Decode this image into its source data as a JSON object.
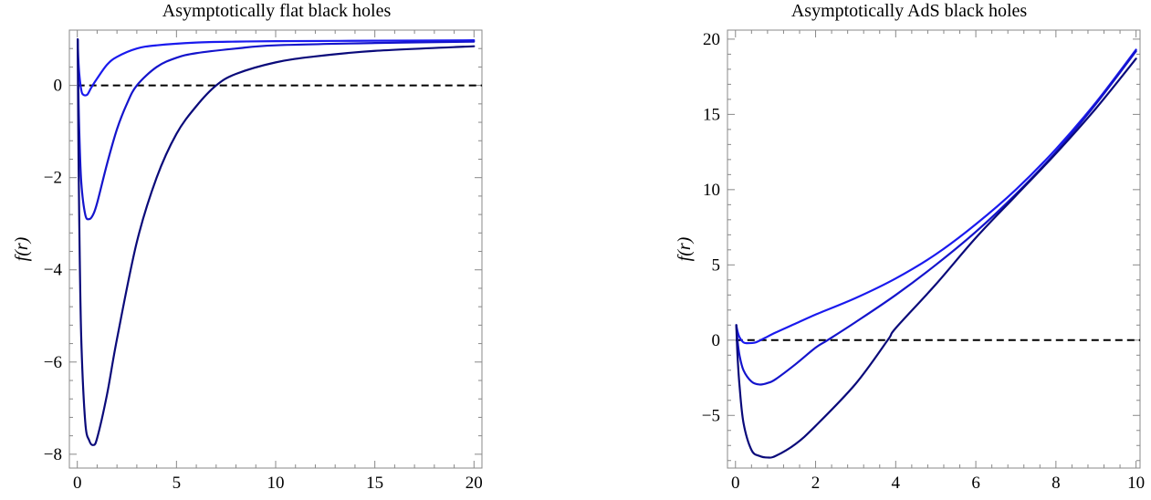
{
  "chart_data": [
    {
      "type": "line",
      "title": "Asymptotically flat black holes",
      "xlabel": "r",
      "ylabel": "f(r)",
      "xlim": [
        -0.4,
        20.4
      ],
      "ylim": [
        -8.3,
        1.2
      ],
      "xticks": [
        0,
        5,
        10,
        15,
        20
      ],
      "yticks": [
        -8,
        -6,
        -4,
        -2,
        0
      ],
      "xtick_labels": [
        "0",
        "5",
        "10",
        "15",
        "20"
      ],
      "ytick_labels": [
        "−8",
        "−6",
        "−4",
        "−2",
        "0"
      ],
      "reference_line": {
        "y": 0,
        "style": "dashed",
        "color": "#000000"
      },
      "series": [
        {
          "color": "#1a1aee",
          "x": [
            0.02,
            0.05,
            0.1,
            0.2,
            0.3,
            0.5,
            0.7,
            1.0,
            1.5,
            2.0,
            3.0,
            4.0,
            6.0,
            8.0,
            10.0,
            15.0,
            20.0
          ],
          "y": [
            1.0,
            0.6,
            0.25,
            -0.1,
            -0.2,
            -0.2,
            -0.05,
            0.15,
            0.45,
            0.62,
            0.8,
            0.87,
            0.93,
            0.95,
            0.96,
            0.97,
            0.98
          ]
        },
        {
          "color": "#1414cc",
          "x": [
            0.02,
            0.05,
            0.1,
            0.2,
            0.4,
            0.6,
            0.8,
            1.0,
            1.5,
            2.0,
            2.5,
            3.0,
            4.0,
            5.0,
            6.0,
            8.0,
            10.0,
            15.0,
            20.0
          ],
          "y": [
            1.0,
            0.0,
            -1.0,
            -2.1,
            -2.8,
            -2.9,
            -2.8,
            -2.55,
            -1.7,
            -0.95,
            -0.4,
            0.0,
            0.4,
            0.6,
            0.7,
            0.8,
            0.87,
            0.92,
            0.95
          ]
        },
        {
          "color": "#0a0a7a",
          "x": [
            0.02,
            0.05,
            0.1,
            0.2,
            0.4,
            0.6,
            0.8,
            1.0,
            1.5,
            2.0,
            3.0,
            4.0,
            5.0,
            6.0,
            7.0,
            8.0,
            10.0,
            12.0,
            15.0,
            20.0
          ],
          "y": [
            1.0,
            -1.0,
            -3.0,
            -5.5,
            -7.3,
            -7.7,
            -7.8,
            -7.65,
            -6.7,
            -5.5,
            -3.4,
            -2.0,
            -1.05,
            -0.45,
            0.0,
            0.25,
            0.5,
            0.63,
            0.75,
            0.85
          ]
        }
      ]
    },
    {
      "type": "line",
      "title": "Asymptotically AdS black holes",
      "xlabel": "r",
      "ylabel": "f(r)",
      "xlim": [
        -0.2,
        10.1
      ],
      "ylim": [
        -8.5,
        20.6
      ],
      "xticks": [
        0,
        2,
        4,
        6,
        8,
        10
      ],
      "yticks": [
        -5,
        0,
        5,
        10,
        15,
        20
      ],
      "xtick_labels": [
        "0",
        "2",
        "4",
        "6",
        "8",
        "10"
      ],
      "ytick_labels": [
        "−5",
        "0",
        "5",
        "10",
        "15",
        "20"
      ],
      "reference_line": {
        "y": 0,
        "style": "dashed",
        "color": "#000000"
      },
      "series": [
        {
          "color": "#1a1aee",
          "x": [
            0.02,
            0.05,
            0.1,
            0.2,
            0.3,
            0.5,
            0.7,
            1.0,
            1.5,
            2.0,
            3.0,
            4.0,
            5.0,
            6.0,
            7.0,
            8.0,
            9.0,
            10.0
          ],
          "y": [
            1.0,
            0.6,
            0.2,
            -0.15,
            -0.2,
            -0.15,
            0.1,
            0.5,
            1.1,
            1.7,
            2.8,
            4.1,
            5.7,
            7.7,
            10.0,
            12.7,
            15.8,
            19.3
          ]
        },
        {
          "color": "#1414cc",
          "x": [
            0.02,
            0.05,
            0.1,
            0.2,
            0.4,
            0.6,
            0.8,
            1.0,
            1.5,
            2.0,
            2.3,
            3.0,
            4.0,
            5.0,
            6.0,
            7.0,
            8.0,
            9.0,
            10.0
          ],
          "y": [
            1.0,
            0.0,
            -1.0,
            -2.0,
            -2.75,
            -2.95,
            -2.85,
            -2.6,
            -1.6,
            -0.5,
            0.0,
            1.2,
            3.0,
            5.0,
            7.2,
            9.7,
            12.5,
            15.7,
            19.2
          ]
        },
        {
          "color": "#0a0a7a",
          "x": [
            0.02,
            0.05,
            0.1,
            0.2,
            0.4,
            0.6,
            0.8,
            1.0,
            1.5,
            2.0,
            3.0,
            3.8,
            4.0,
            5.0,
            6.0,
            7.0,
            8.0,
            9.0,
            10.0
          ],
          "y": [
            1.0,
            -1.0,
            -3.0,
            -5.5,
            -7.3,
            -7.7,
            -7.8,
            -7.7,
            -6.9,
            -5.7,
            -2.9,
            0.0,
            0.8,
            3.7,
            6.8,
            9.6,
            12.4,
            15.4,
            18.7
          ]
        }
      ]
    }
  ]
}
